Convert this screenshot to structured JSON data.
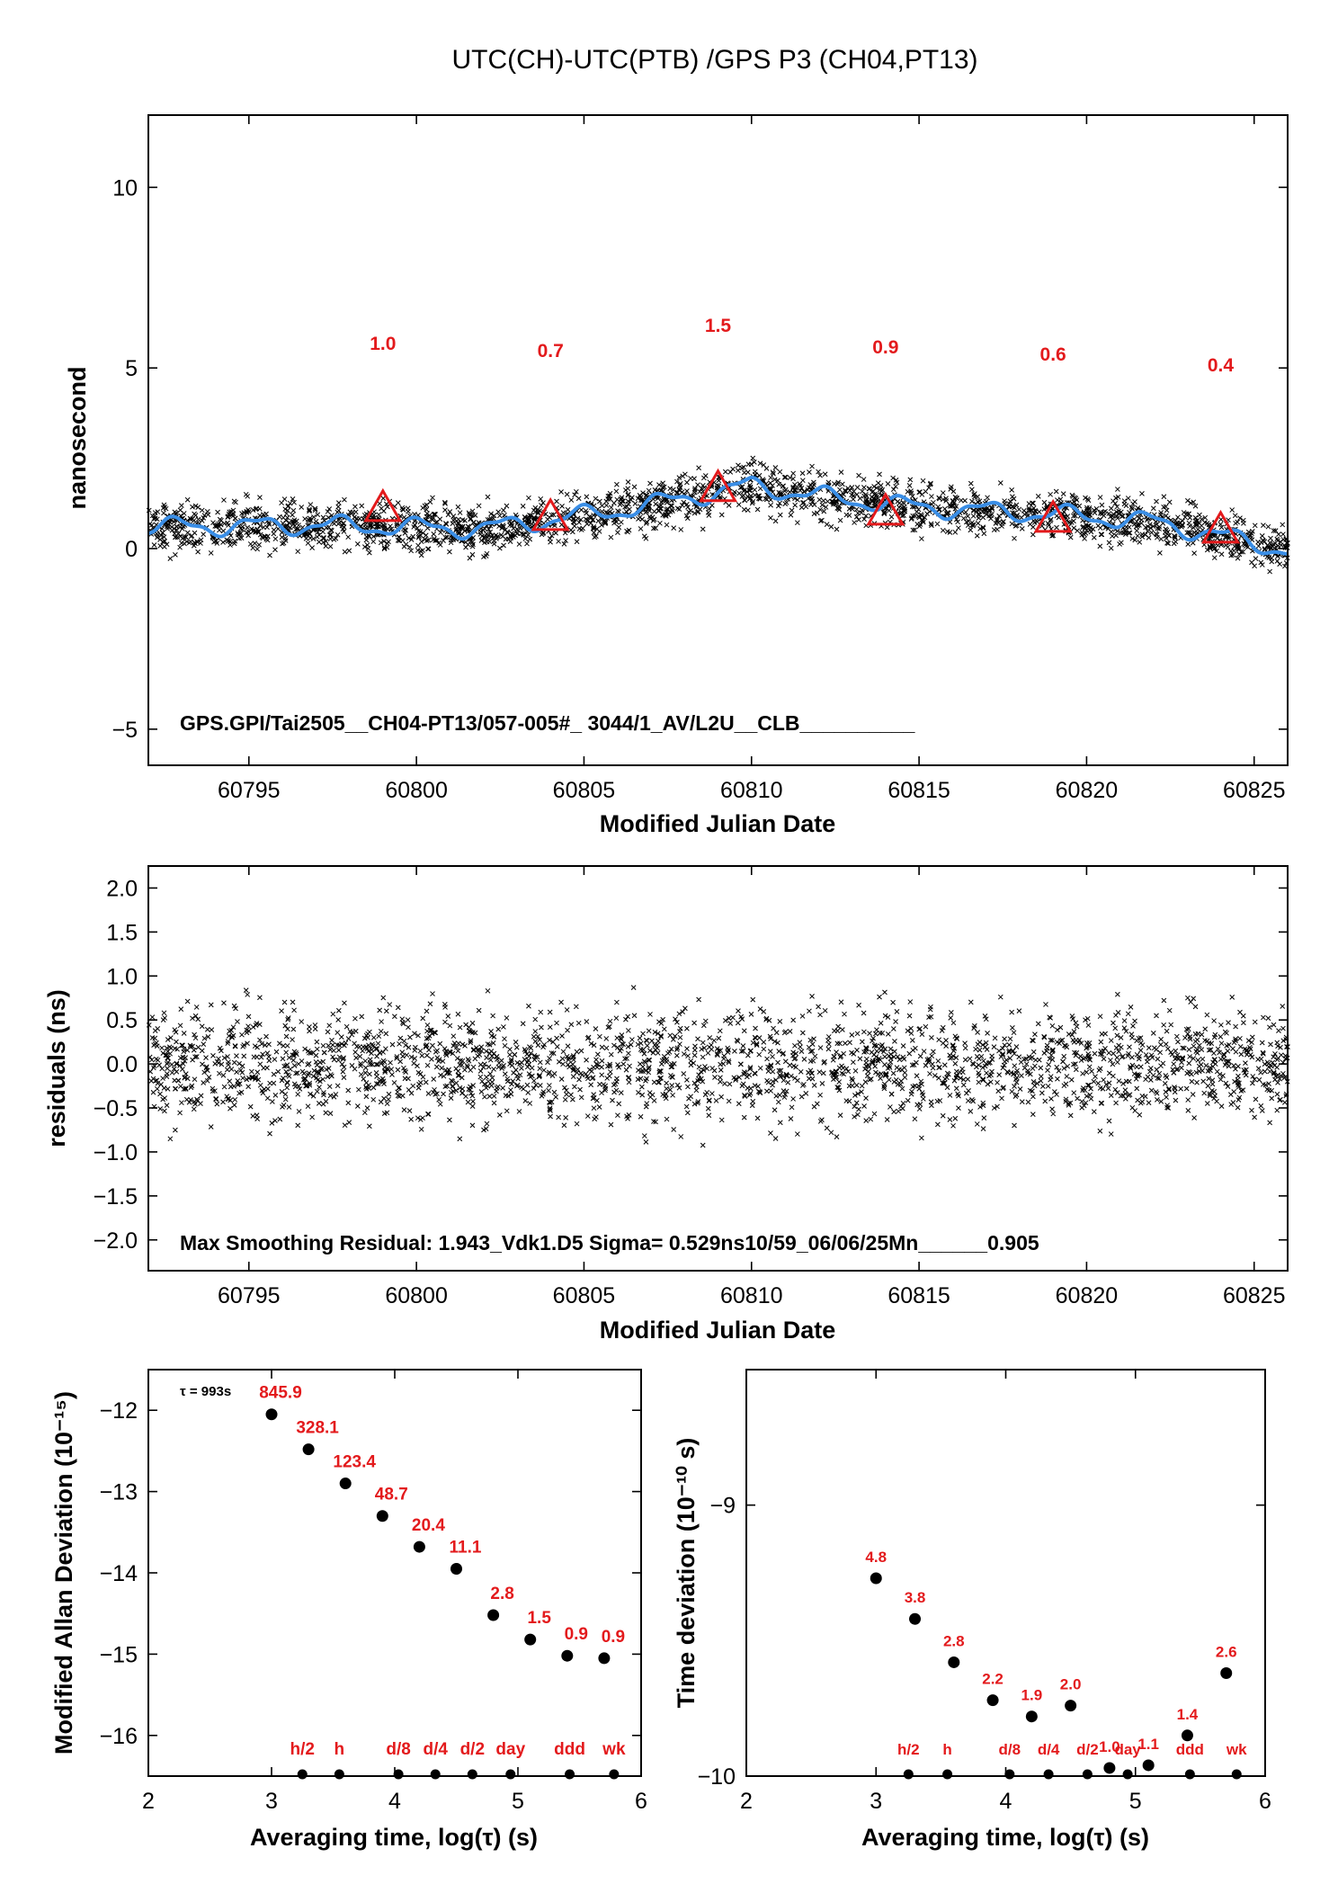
{
  "title": "UTC(CH)-UTC(PTB)  /GPS  P3  (CH04,PT13)",
  "colors": {
    "smooth_line": "#3a8ee6",
    "markers": "#e31a1c",
    "points": "#000000"
  },
  "chart_data": [
    {
      "id": "top",
      "type": "scatter",
      "ylabel": "nanosecond",
      "xlabel": "Modified Julian Date",
      "xlim": [
        60792,
        60826
      ],
      "ylim": [
        -6,
        12
      ],
      "xticks": [
        60795,
        60800,
        60805,
        60810,
        60815,
        60820,
        60825
      ],
      "yticks": [
        -5,
        0,
        5,
        10
      ],
      "footer": "GPS.GPI/Tai2505__CH04-PT13/057-005#_  3044/1_AV/L2U__CLB__________",
      "trend": [
        [
          60792,
          0.6
        ],
        [
          60797,
          0.65
        ],
        [
          60802,
          0.55
        ],
        [
          60806,
          1.05
        ],
        [
          60808,
          1.4
        ],
        [
          60810,
          1.75
        ],
        [
          60812,
          1.45
        ],
        [
          60815,
          1.15
        ],
        [
          60819,
          0.95
        ],
        [
          60822,
          0.75
        ],
        [
          60824,
          0.35
        ],
        [
          60826,
          -0.05
        ]
      ],
      "triangles": [
        {
          "x": 60799,
          "y": 1.1,
          "label": "1.0"
        },
        {
          "x": 60804,
          "y": 0.85,
          "label": "0.7"
        },
        {
          "x": 60809,
          "y": 1.65,
          "label": "1.5"
        },
        {
          "x": 60814,
          "y": 1.0,
          "label": "0.9"
        },
        {
          "x": 60819,
          "y": 0.8,
          "label": "0.6"
        },
        {
          "x": 60824,
          "y": 0.5,
          "label": "0.4"
        }
      ],
      "triangle_label_y": [
        5.7,
        5.5,
        6.2,
        5.6,
        5.4,
        5.1
      ]
    },
    {
      "id": "mid",
      "type": "scatter",
      "ylabel": "residuals (ns)",
      "xlabel": "Modified Julian Date",
      "xlim": [
        60792,
        60826
      ],
      "ylim": [
        -2.35,
        2.25
      ],
      "xticks": [
        60795,
        60800,
        60805,
        60810,
        60815,
        60820,
        60825
      ],
      "yticks": [
        -2.0,
        -1.5,
        -1.0,
        -0.5,
        0.0,
        0.5,
        1.0,
        1.5,
        2.0
      ],
      "yticklabels": [
        "−2.0",
        "−1.5",
        "−1.0",
        "−0.5",
        "0.0",
        "0.5",
        "1.0",
        "1.5",
        "2.0"
      ],
      "footer": "Max Smoothing Residual: 1.943_Vdk1.D5  Sigma= 0.529ns10/59_06/06/25Mn______0.905"
    },
    {
      "id": "adev",
      "type": "scatter",
      "ylabel": "Modified Allan Deviation (10⁻¹⁵)",
      "xlabel": "Averaging time, log(τ) (s)",
      "xlim": [
        2,
        6
      ],
      "ylim": [
        -16.5,
        -11.5
      ],
      "xticks": [
        2,
        3,
        4,
        5,
        6
      ],
      "yticks": [
        -16,
        -15,
        -14,
        -13,
        -12
      ],
      "yticklabels": [
        "−16",
        "−15",
        "−14",
        "−13",
        "−12"
      ],
      "annotation": "τ = 993s",
      "points": [
        {
          "x": 3.0,
          "y": -12.05,
          "label": "845.9"
        },
        {
          "x": 3.3,
          "y": -12.48,
          "label": "328.1"
        },
        {
          "x": 3.6,
          "y": -12.9,
          "label": "123.4"
        },
        {
          "x": 3.9,
          "y": -13.3,
          "label": "48.7"
        },
        {
          "x": 4.2,
          "y": -13.68,
          "label": "20.4"
        },
        {
          "x": 4.5,
          "y": -13.95,
          "label": "11.1"
        },
        {
          "x": 4.8,
          "y": -14.52,
          "label": "2.8"
        },
        {
          "x": 5.1,
          "y": -14.82,
          "label": "1.5"
        },
        {
          "x": 5.4,
          "y": -15.02,
          "label": "0.9"
        },
        {
          "x": 5.7,
          "y": -15.05,
          "label": "0.9"
        }
      ],
      "markers": [
        {
          "x": 3.25,
          "label": "h/2"
        },
        {
          "x": 3.55,
          "label": "h"
        },
        {
          "x": 4.03,
          "label": "d/8"
        },
        {
          "x": 4.33,
          "label": "d/4"
        },
        {
          "x": 4.63,
          "label": "d/2"
        },
        {
          "x": 4.94,
          "label": "day"
        },
        {
          "x": 5.42,
          "label": "ddd"
        },
        {
          "x": 5.78,
          "label": "wk"
        }
      ]
    },
    {
      "id": "tdev",
      "type": "scatter",
      "ylabel": "Time deviation (10⁻¹⁰ s)",
      "xlabel": "Averaging time, log(τ) (s)",
      "xlim": [
        2,
        6
      ],
      "ylim": [
        -10,
        -8.5
      ],
      "xticks": [
        2,
        3,
        4,
        5,
        6
      ],
      "yticks": [
        -10,
        -9
      ],
      "yticklabels": [
        "−10",
        "−9"
      ],
      "points": [
        {
          "x": 3.0,
          "y": -9.27,
          "label": "4.8"
        },
        {
          "x": 3.3,
          "y": -9.42,
          "label": "3.8"
        },
        {
          "x": 3.6,
          "y": -9.58,
          "label": "2.8"
        },
        {
          "x": 3.9,
          "y": -9.72,
          "label": "2.2"
        },
        {
          "x": 4.2,
          "y": -9.78,
          "label": "1.9"
        },
        {
          "x": 4.5,
          "y": -9.74,
          "label": "2.0"
        },
        {
          "x": 4.8,
          "y": -9.97,
          "label": "1.0"
        },
        {
          "x": 5.1,
          "y": -9.96,
          "label": "1.1"
        },
        {
          "x": 5.4,
          "y": -9.85,
          "label": "1.4"
        },
        {
          "x": 5.7,
          "y": -9.62,
          "label": "2.6"
        }
      ],
      "markers": [
        {
          "x": 3.25,
          "label": "h/2"
        },
        {
          "x": 3.55,
          "label": "h"
        },
        {
          "x": 4.03,
          "label": "d/8"
        },
        {
          "x": 4.33,
          "label": "d/4"
        },
        {
          "x": 4.63,
          "label": "d/2"
        },
        {
          "x": 4.94,
          "label": "day"
        },
        {
          "x": 5.42,
          "label": "ddd"
        },
        {
          "x": 5.78,
          "label": "wk"
        }
      ]
    }
  ]
}
